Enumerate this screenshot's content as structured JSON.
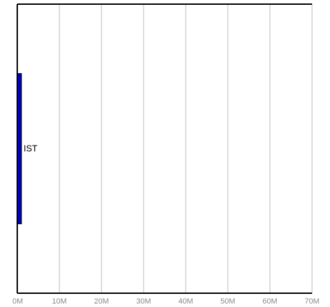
{
  "chart_data": {
    "type": "bar",
    "orientation": "horizontal",
    "title": "",
    "xlabel": "",
    "ylabel": "",
    "categories": [
      "IST"
    ],
    "values": [
      1000000
    ],
    "xlim": [
      0,
      70000000
    ],
    "x_ticks": [
      0,
      10000000,
      20000000,
      30000000,
      40000000,
      50000000,
      60000000,
      70000000
    ],
    "x_tick_labels": [
      "0M",
      "10M",
      "20M",
      "30M",
      "40M",
      "50M",
      "60M",
      "70M"
    ],
    "grid": "vertical",
    "legend": "none",
    "colors": {
      "bar": "#0000cc",
      "bar_outline": "#000000",
      "grid": "#bbbbbb",
      "axis": "#000000",
      "tick_label": "#888888"
    }
  }
}
